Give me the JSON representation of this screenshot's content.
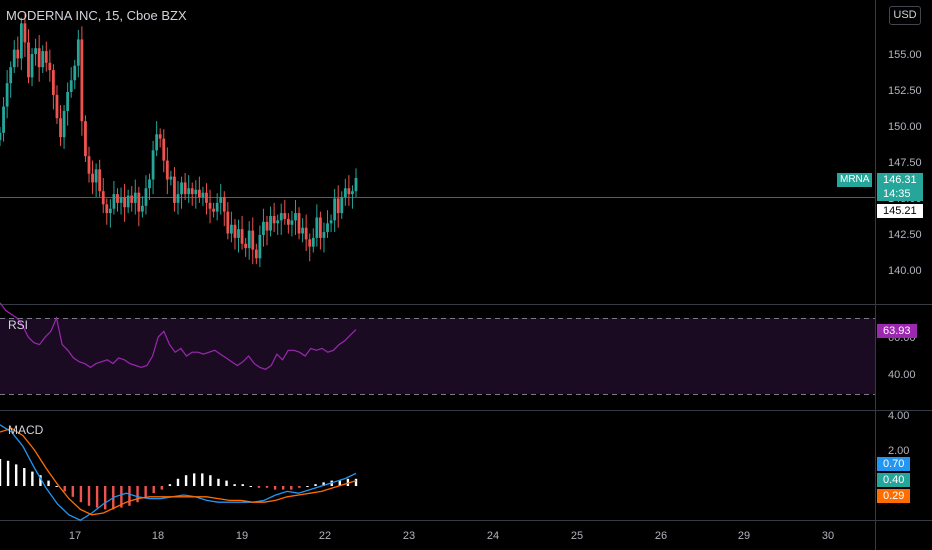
{
  "header": {
    "title": "MODERNA INC, 15, Cboe BZX",
    "currency_button": "USD"
  },
  "price_axis": [
    "155.00",
    "152.50",
    "150.00",
    "147.50",
    "145.00",
    "142.50",
    "140.00"
  ],
  "price_tags": {
    "symbol": "MRNA",
    "last_price": "146.31",
    "countdown": "14:35",
    "crosshair_price": "145.21"
  },
  "rsi": {
    "label": "RSI",
    "axis": [
      "60.00",
      "40.00"
    ],
    "value_tag": "63.93"
  },
  "macd": {
    "label": "MACD",
    "axis": [
      "4.00",
      "2.00"
    ],
    "tags": [
      "0.70",
      "0.40",
      "0.29"
    ]
  },
  "time_axis": [
    "17",
    "18",
    "19",
    "22",
    "23",
    "24",
    "25",
    "26",
    "29",
    "30"
  ],
  "colors": {
    "up": "#26a69a",
    "down": "#ef5350",
    "rsi_line": "#9c27b0",
    "macd_line": "#2196f3",
    "signal_line": "#ff6d00",
    "hist_up": "#ffffff",
    "hist_down": "#ef5350"
  },
  "chart_data": {
    "type": "candlestick",
    "close": [
      149.4,
      151.2,
      152.8,
      153.9,
      155.1,
      154.5,
      156.9,
      155.6,
      153.2,
      154.8,
      155.2,
      153.9,
      155.0,
      154.2,
      153.7,
      152.0,
      150.4,
      149.1,
      150.9,
      152.2,
      153.0,
      154.0,
      155.8,
      150.2,
      147.8,
      146.6,
      146.0,
      146.9,
      145.4,
      144.5,
      143.9,
      144.2,
      145.2,
      144.6,
      145.0,
      144.3,
      145.1,
      144.6,
      145.3,
      144.0,
      144.4,
      145.6,
      146.2,
      148.2,
      149.3,
      149.0,
      147.5,
      146.2,
      146.4,
      144.6,
      145.2,
      146.0,
      145.2,
      145.6,
      145.2,
      145.5,
      145.0,
      145.3,
      144.6,
      144.2,
      144.0,
      144.6,
      145.0,
      144.0,
      142.5,
      143.1,
      142.2,
      142.8,
      141.8,
      141.5,
      142.7,
      141.4,
      140.8,
      142.4,
      143.3,
      142.7,
      143.7,
      143.2,
      143.4,
      143.9,
      143.5,
      143.1,
      143.4,
      143.9,
      142.5,
      142.9,
      142.1,
      141.6,
      142.2,
      143.6,
      142.2,
      142.6,
      143.2,
      143.4,
      144.9,
      143.9,
      145.0,
      145.6,
      145.2,
      145.4,
      146.31
    ],
    "rsi": [
      78,
      74,
      72,
      70,
      66,
      60,
      57,
      56,
      60,
      63,
      70,
      56,
      53,
      49,
      47,
      46,
      44,
      46,
      47,
      48,
      46,
      49,
      48,
      46,
      45,
      44,
      45,
      50,
      60,
      63,
      56,
      52,
      54,
      50,
      52,
      52,
      51,
      52,
      53,
      51,
      49,
      47,
      45,
      47,
      50,
      46,
      44,
      43,
      45,
      51,
      48,
      53,
      53,
      52,
      50,
      54,
      53,
      54,
      52,
      53,
      56,
      58,
      61,
      63.93
    ],
    "macd": [
      3.4,
      3.0,
      2.2,
      1.0,
      -0.1,
      -1.0,
      -1.6,
      -1.9,
      -1.5,
      -1.0,
      -0.6,
      -0.4,
      -0.6,
      -0.7,
      -0.7,
      -0.6,
      -0.5,
      -0.6,
      -0.8,
      -0.9,
      -0.9,
      -0.9,
      -0.9,
      -0.8,
      -0.5,
      -0.3,
      -0.4,
      -0.2,
      0.0,
      0.2,
      0.4,
      0.7
    ],
    "signal": [
      3.0,
      3.2,
      2.8,
      2.0,
      1.0,
      0.1,
      -0.7,
      -1.3,
      -1.6,
      -1.5,
      -1.2,
      -0.9,
      -0.7,
      -0.6,
      -0.6,
      -0.6,
      -0.6,
      -0.6,
      -0.6,
      -0.7,
      -0.8,
      -0.8,
      -0.9,
      -0.9,
      -0.8,
      -0.6,
      -0.5,
      -0.4,
      -0.3,
      -0.1,
      0.1,
      0.29
    ],
    "histogram": [
      1.5,
      1.4,
      1.2,
      1.0,
      0.8,
      0.6,
      0.3,
      0.0,
      -0.3,
      -0.6,
      -0.9,
      -1.1,
      -1.2,
      -1.3,
      -1.3,
      -1.2,
      -1.1,
      -0.9,
      -0.7,
      -0.4,
      -0.2,
      0.1,
      0.4,
      0.6,
      0.7,
      0.7,
      0.6,
      0.4,
      0.3,
      0.1,
      0.1,
      0.0,
      -0.1,
      -0.1,
      -0.2,
      -0.2,
      -0.2,
      -0.1,
      0.0,
      0.1,
      0.2,
      0.3,
      0.3,
      0.4,
      0.4
    ]
  }
}
